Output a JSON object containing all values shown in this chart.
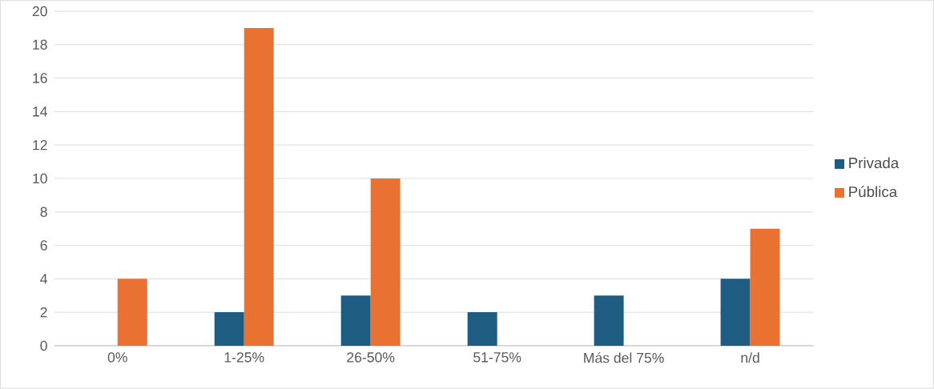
{
  "chart_data": {
    "type": "bar",
    "categories": [
      "0%",
      "1-25%",
      "26-50%",
      "51-75%",
      "Más del 75%",
      "n/d"
    ],
    "series": [
      {
        "name": "Privada",
        "color": "#1f5c82",
        "values": [
          0,
          2,
          3,
          2,
          3,
          4
        ]
      },
      {
        "name": "Pública",
        "color": "#e97132",
        "values": [
          4,
          19,
          10,
          0,
          0,
          7
        ]
      }
    ],
    "ylim": [
      0,
      20
    ],
    "yticks": [
      0,
      2,
      4,
      6,
      8,
      10,
      12,
      14,
      16,
      18,
      20
    ],
    "grid": "y",
    "legend": "right"
  }
}
